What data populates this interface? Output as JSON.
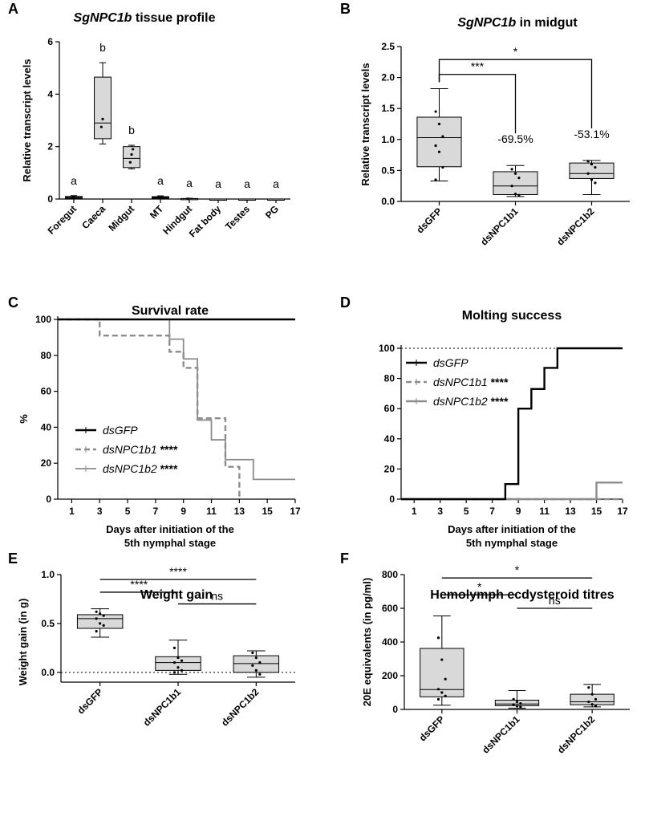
{
  "chart_data": [
    {
      "id": "A",
      "panel_label": "A",
      "type": "box",
      "title_italic": "SgNPC1b",
      "title_rest": " tissue profile",
      "ylabel": "Relative transcript levels",
      "xlabel": "",
      "ylim": [
        0,
        6
      ],
      "yticks": [
        "0",
        "2",
        "4",
        "6"
      ],
      "ytick_values": [
        0,
        2,
        4,
        6
      ],
      "categories": [
        "Foregut",
        "Caeca",
        "Midgut",
        "MT",
        "Hindgut",
        "Fat body",
        "Testes",
        "PG"
      ],
      "boxes": [
        {
          "min": 0.0,
          "q1": 0.03,
          "median": 0.06,
          "q3": 0.1,
          "max": 0.13,
          "points": [
            0.05,
            0.09
          ]
        },
        {
          "min": 2.1,
          "q1": 2.3,
          "median": 2.9,
          "q3": 4.65,
          "max": 5.2,
          "points": [
            2.75,
            3.05
          ]
        },
        {
          "min": 1.15,
          "q1": 1.2,
          "median": 1.55,
          "q3": 2.0,
          "max": 2.05,
          "points": [
            1.4,
            1.7,
            1.9
          ]
        },
        {
          "min": 0.0,
          "q1": 0.03,
          "median": 0.06,
          "q3": 0.09,
          "max": 0.12,
          "points": [
            0.05
          ]
        },
        {
          "min": 0.0,
          "q1": 0.0,
          "median": 0.01,
          "q3": 0.02,
          "max": 0.03,
          "points": [
            0.01
          ]
        },
        {
          "min": 0.0,
          "q1": 0.0,
          "median": 0.0,
          "q3": 0.0,
          "max": 0.0,
          "points": []
        },
        {
          "min": 0.0,
          "q1": 0.0,
          "median": 0.0,
          "q3": 0.0,
          "max": 0.0,
          "points": []
        },
        {
          "min": 0.0,
          "q1": 0.0,
          "median": 0.0,
          "q3": 0.0,
          "max": 0.0,
          "points": []
        }
      ],
      "letters": [
        "a",
        "b",
        "b",
        "a",
        "a",
        "a",
        "a",
        "a"
      ],
      "brackets": []
    },
    {
      "id": "B",
      "panel_label": "B",
      "type": "box",
      "title_italic": "SgNPC1b",
      "title_rest": " in midgut",
      "ylabel": "Relative transcript levels",
      "xlabel": "",
      "ylim": [
        0,
        2.5
      ],
      "yticks": [
        "0.0",
        "0.5",
        "1.0",
        "1.5",
        "2.0",
        "2.5"
      ],
      "ytick_values": [
        0,
        0.5,
        1.0,
        1.5,
        2.0,
        2.5
      ],
      "categories": [
        "dsGFP",
        "dsNPC1b1",
        "dsNPC1b2"
      ],
      "boxes": [
        {
          "min": 0.33,
          "q1": 0.56,
          "median": 1.03,
          "q3": 1.36,
          "max": 1.82,
          "points": [
            1.45,
            1.25,
            1.05,
            0.9,
            0.8,
            0.55,
            0.35
          ]
        },
        {
          "min": 0.08,
          "q1": 0.11,
          "median": 0.25,
          "q3": 0.48,
          "max": 0.58,
          "points": [
            0.52,
            0.45,
            0.38,
            0.25,
            0.12,
            0.1
          ]
        },
        {
          "min": 0.11,
          "q1": 0.37,
          "median": 0.45,
          "q3": 0.62,
          "max": 0.66,
          "points": [
            0.65,
            0.6,
            0.55,
            0.45,
            0.35,
            0.3
          ]
        }
      ],
      "letters": [
        "",
        "-69.5%",
        "-53.1%"
      ],
      "brackets": [
        {
          "from": 0,
          "to": 1,
          "y": 2.05,
          "label": "***"
        },
        {
          "from": 0,
          "to": 2,
          "y": 2.29,
          "label": "*"
        }
      ]
    },
    {
      "id": "C",
      "panel_label": "C",
      "type": "line",
      "title": "Survival rate",
      "ylabel": "%",
      "xlabel_line1": "Days after initiation of the",
      "xlabel_line2": "5th nymphal stage",
      "xlim": [
        0,
        17
      ],
      "ylim": [
        0,
        100
      ],
      "xticks": [
        "1",
        "3",
        "5",
        "7",
        "9",
        "11",
        "13",
        "15",
        "17"
      ],
      "xtick_values": [
        1,
        3,
        5,
        7,
        9,
        11,
        13,
        15,
        17
      ],
      "yticks": [
        "0",
        "20",
        "40",
        "60",
        "80",
        "100"
      ],
      "ytick_values": [
        0,
        20,
        40,
        60,
        80,
        100
      ],
      "reference_line": null,
      "series": [
        {
          "name": "dsGFP",
          "suffix": "",
          "color": "#000000",
          "dashed": false,
          "width": 2.4,
          "steps": [
            [
              0,
              100
            ],
            [
              17,
              100
            ]
          ]
        },
        {
          "name": "dsNPC1b1",
          "suffix": " ****",
          "color": "#8c8c8c",
          "dashed": true,
          "width": 2.4,
          "steps": [
            [
              0,
              100
            ],
            [
              3,
              100
            ],
            [
              3,
              91
            ],
            [
              8,
              91
            ],
            [
              8,
              82
            ],
            [
              9,
              82
            ],
            [
              9,
              73
            ],
            [
              9.5,
              73
            ],
            [
              9.5,
              73
            ],
            [
              10,
              73
            ],
            [
              10,
              45
            ],
            [
              12,
              45
            ],
            [
              12,
              18
            ],
            [
              13,
              18
            ],
            [
              13,
              0
            ]
          ]
        },
        {
          "name": "dsNPC1b2",
          "suffix": " ****",
          "color": "#8c8c8c",
          "dashed": false,
          "width": 1.8,
          "steps": [
            [
              0,
              100
            ],
            [
              8,
              100
            ],
            [
              8,
              89
            ],
            [
              9,
              89
            ],
            [
              9,
              78
            ],
            [
              10,
              78
            ],
            [
              10,
              44
            ],
            [
              11,
              44
            ],
            [
              11,
              33
            ],
            [
              12,
              33
            ],
            [
              12,
              22
            ],
            [
              14,
              22
            ],
            [
              14,
              11
            ],
            [
              17,
              11
            ]
          ]
        }
      ]
    },
    {
      "id": "D",
      "panel_label": "D",
      "type": "line",
      "title": "Molting success",
      "ylabel": "",
      "xlabel_line1": "Days after initiation of the",
      "xlabel_line2": "5th nymphal stage",
      "xlim": [
        0,
        17
      ],
      "ylim": [
        0,
        100
      ],
      "xticks": [
        "1",
        "3",
        "5",
        "7",
        "9",
        "11",
        "13",
        "15",
        "17"
      ],
      "xtick_values": [
        1,
        3,
        5,
        7,
        9,
        11,
        13,
        15,
        17
      ],
      "yticks": [
        "0",
        "20",
        "40",
        "60",
        "80",
        "100"
      ],
      "ytick_values": [
        0,
        20,
        40,
        60,
        80,
        100
      ],
      "reference_line": 100,
      "series": [
        {
          "name": "dsGFP",
          "suffix": "",
          "color": "#000000",
          "dashed": false,
          "width": 2.4,
          "steps": [
            [
              0,
              0
            ],
            [
              8,
              0
            ],
            [
              8,
              10
            ],
            [
              9,
              10
            ],
            [
              9,
              60
            ],
            [
              10,
              60
            ],
            [
              10,
              73
            ],
            [
              11,
              73
            ],
            [
              11,
              87
            ],
            [
              12,
              87
            ],
            [
              12,
              100
            ],
            [
              17,
              100
            ]
          ]
        },
        {
          "name": "dsNPC1b1",
          "suffix": " ****",
          "color": "#8c8c8c",
          "dashed": true,
          "width": 2.4,
          "steps": [
            [
              0,
              0
            ],
            [
              17,
              0
            ]
          ]
        },
        {
          "name": "dsNPC1b2",
          "suffix": " ****",
          "color": "#8c8c8c",
          "dashed": false,
          "width": 2.4,
          "steps": [
            [
              0,
              0
            ],
            [
              15,
              0
            ],
            [
              15,
              11
            ],
            [
              17,
              11
            ]
          ]
        }
      ]
    },
    {
      "id": "E",
      "panel_label": "E",
      "type": "box",
      "title": "Weight gain",
      "ylabel": "Weight gain (in g)",
      "xlabel": "",
      "ylim": [
        -0.1,
        1.0
      ],
      "yticks": [
        "0.0",
        "0.5",
        "1.0"
      ],
      "ytick_values": [
        0,
        0.5,
        1.0
      ],
      "reference_line": 0,
      "categories": [
        "dsGFP",
        "dsNPC1b1",
        "dsNPC1b2"
      ],
      "boxes": [
        {
          "min": 0.36,
          "q1": 0.45,
          "median": 0.55,
          "q3": 0.59,
          "max": 0.65,
          "points": [
            0.62,
            0.6,
            0.58,
            0.55,
            0.5,
            0.48,
            0.42
          ]
        },
        {
          "min": -0.02,
          "q1": 0.02,
          "median": 0.1,
          "q3": 0.16,
          "max": 0.33,
          "points": [
            0.25,
            0.15,
            0.12,
            0.1,
            0.05,
            0.02,
            0.0
          ]
        },
        {
          "min": -0.05,
          "q1": 0.0,
          "median": 0.09,
          "q3": 0.17,
          "max": 0.22,
          "points": [
            0.2,
            0.15,
            0.1,
            0.07,
            0.02,
            -0.02
          ]
        }
      ],
      "letters": [
        "",
        "",
        ""
      ],
      "brackets": [
        {
          "from": 0,
          "to": 1,
          "y": 0.82,
          "label": "****"
        },
        {
          "from": 0,
          "to": 2,
          "y": 0.95,
          "label": "****"
        },
        {
          "from": 1,
          "to": 2,
          "y": 0.7,
          "label": "ns"
        }
      ]
    },
    {
      "id": "F",
      "panel_label": "F",
      "type": "box",
      "title": "Hemolymph ecdysteroid titres",
      "ylabel": "20E equivalents (in pg/ml)",
      "xlabel": "",
      "ylim": [
        0,
        800
      ],
      "yticks": [
        "0",
        "200",
        "400",
        "600",
        "800"
      ],
      "ytick_values": [
        0,
        200,
        400,
        600,
        800
      ],
      "reference_line": null,
      "categories": [
        "dsGFP",
        "dsNPC1b1",
        "dsNPC1b2"
      ],
      "boxes": [
        {
          "min": 25,
          "q1": 75,
          "median": 118,
          "q3": 362,
          "max": 555,
          "points": [
            425,
            295,
            180,
            120,
            100,
            80,
            60
          ]
        },
        {
          "min": 8,
          "q1": 22,
          "median": 32,
          "q3": 55,
          "max": 112,
          "points": [
            60,
            45,
            35,
            28,
            20,
            15
          ]
        },
        {
          "min": 15,
          "q1": 28,
          "median": 45,
          "q3": 90,
          "max": 148,
          "points": [
            130,
            90,
            60,
            45,
            30,
            20
          ]
        }
      ],
      "letters": [
        "",
        "",
        ""
      ],
      "brackets": [
        {
          "from": 0,
          "to": 1,
          "y": 680,
          "label": "*"
        },
        {
          "from": 0,
          "to": 2,
          "y": 780,
          "label": "*"
        },
        {
          "from": 1,
          "to": 2,
          "y": 600,
          "label": "ns"
        }
      ]
    }
  ]
}
